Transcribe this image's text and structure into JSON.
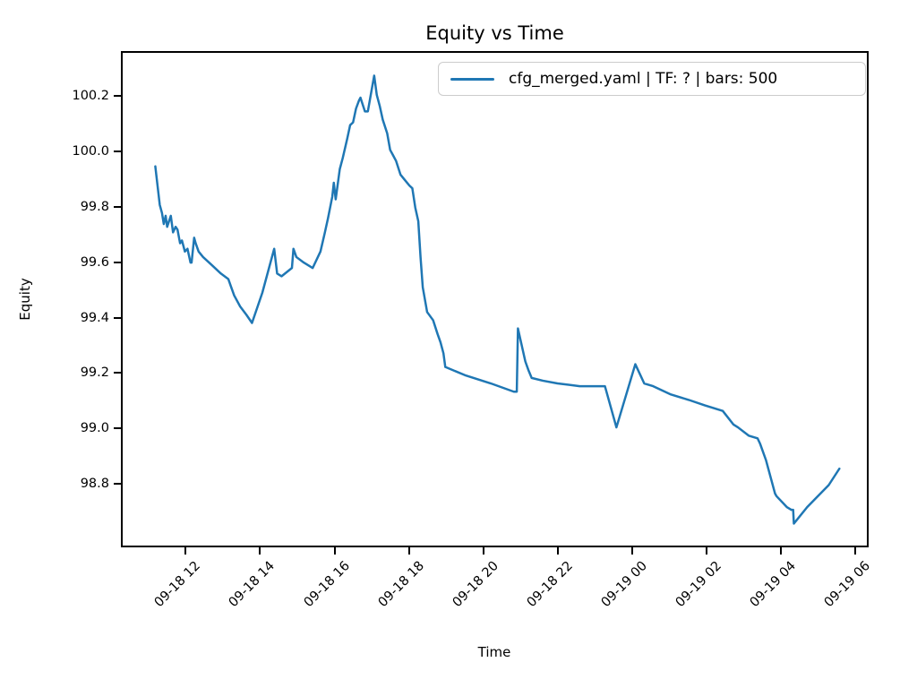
{
  "chart_data": {
    "type": "line",
    "title": "Equity vs Time",
    "xlabel": "Time",
    "ylabel": "Equity",
    "grid": false,
    "legend_position": "upper right",
    "legend": [
      {
        "label": "cfg_merged.yaml | TF: ? | bars: 500",
        "color": "#1f77b4"
      }
    ],
    "line_color": "#1f77b4",
    "axis_color": "#000000",
    "x_unit": "hours after 09-18 00 (tick labels formatted MM-DD HH)",
    "xlim_hours": [
      10.26,
      30.35
    ],
    "ylim": [
      98.57,
      100.363
    ],
    "y_ticks": [
      100.2,
      100.0,
      99.8,
      99.6,
      99.4,
      99.2,
      99.0,
      98.8
    ],
    "x_ticks": [
      {
        "hour": 12,
        "label": "09-18 12"
      },
      {
        "hour": 14,
        "label": "09-18 14"
      },
      {
        "hour": 16,
        "label": "09-18 16"
      },
      {
        "hour": 18,
        "label": "09-18 18"
      },
      {
        "hour": 20,
        "label": "09-18 20"
      },
      {
        "hour": 22,
        "label": "09-18 22"
      },
      {
        "hour": 24,
        "label": "09-19 00"
      },
      {
        "hour": 26,
        "label": "09-19 02"
      },
      {
        "hour": 28,
        "label": "09-19 04"
      },
      {
        "hour": 30,
        "label": "09-19 06"
      }
    ],
    "series": [
      {
        "name": "cfg_merged.yaml | TF: ? | bars: 500",
        "points": [
          [
            11.14,
            99.95
          ],
          [
            11.26,
            99.81
          ],
          [
            11.32,
            99.78
          ],
          [
            11.37,
            99.74
          ],
          [
            11.42,
            99.77
          ],
          [
            11.46,
            99.73
          ],
          [
            11.56,
            99.77
          ],
          [
            11.62,
            99.71
          ],
          [
            11.69,
            99.73
          ],
          [
            11.74,
            99.72
          ],
          [
            11.81,
            99.67
          ],
          [
            11.86,
            99.68
          ],
          [
            11.94,
            99.64
          ],
          [
            12.01,
            99.65
          ],
          [
            12.09,
            99.6
          ],
          [
            12.12,
            99.6
          ],
          [
            12.19,
            99.69
          ],
          [
            12.23,
            99.67
          ],
          [
            12.31,
            99.64
          ],
          [
            12.43,
            99.62
          ],
          [
            12.67,
            99.59
          ],
          [
            12.91,
            99.56
          ],
          [
            13.11,
            99.54
          ],
          [
            13.19,
            99.51
          ],
          [
            13.27,
            99.48
          ],
          [
            13.43,
            99.44
          ],
          [
            13.6,
            99.41
          ],
          [
            13.75,
            99.38
          ],
          [
            14.03,
            99.49
          ],
          [
            14.35,
            99.65
          ],
          [
            14.43,
            99.56
          ],
          [
            14.55,
            99.55
          ],
          [
            14.83,
            99.58
          ],
          [
            14.87,
            99.65
          ],
          [
            14.95,
            99.62
          ],
          [
            15.15,
            99.6
          ],
          [
            15.39,
            99.58
          ],
          [
            15.6,
            99.64
          ],
          [
            15.72,
            99.71
          ],
          [
            15.8,
            99.76
          ],
          [
            15.92,
            99.84
          ],
          [
            15.96,
            99.89
          ],
          [
            16.01,
            99.83
          ],
          [
            16.12,
            99.94
          ],
          [
            16.2,
            99.98
          ],
          [
            16.32,
            100.05
          ],
          [
            16.4,
            100.1
          ],
          [
            16.48,
            100.11
          ],
          [
            16.56,
            100.16
          ],
          [
            16.64,
            100.19
          ],
          [
            16.68,
            100.2
          ],
          [
            16.8,
            100.15
          ],
          [
            16.88,
            100.15
          ],
          [
            16.97,
            100.22
          ],
          [
            17.05,
            100.28
          ],
          [
            17.12,
            100.21
          ],
          [
            17.2,
            100.17
          ],
          [
            17.28,
            100.12
          ],
          [
            17.4,
            100.07
          ],
          [
            17.48,
            100.01
          ],
          [
            17.56,
            99.99
          ],
          [
            17.64,
            99.97
          ],
          [
            17.76,
            99.92
          ],
          [
            17.88,
            99.9
          ],
          [
            18.0,
            99.88
          ],
          [
            18.08,
            99.87
          ],
          [
            18.16,
            99.8
          ],
          [
            18.24,
            99.75
          ],
          [
            18.3,
            99.62
          ],
          [
            18.36,
            99.51
          ],
          [
            18.48,
            99.42
          ],
          [
            18.64,
            99.39
          ],
          [
            18.76,
            99.34
          ],
          [
            18.84,
            99.31
          ],
          [
            18.92,
            99.27
          ],
          [
            18.97,
            99.22
          ],
          [
            19.5,
            99.19
          ],
          [
            20.2,
            99.16
          ],
          [
            20.82,
            99.13
          ],
          [
            20.9,
            99.13
          ],
          [
            20.93,
            99.36
          ],
          [
            21.13,
            99.24
          ],
          [
            21.21,
            99.21
          ],
          [
            21.3,
            99.18
          ],
          [
            21.6,
            99.17
          ],
          [
            22.0,
            99.16
          ],
          [
            22.6,
            99.15
          ],
          [
            23.28,
            99.15
          ],
          [
            23.59,
            99.0
          ],
          [
            24.1,
            99.23
          ],
          [
            24.34,
            99.16
          ],
          [
            24.58,
            99.15
          ],
          [
            25.06,
            99.12
          ],
          [
            25.54,
            99.1
          ],
          [
            25.98,
            99.08
          ],
          [
            26.46,
            99.06
          ],
          [
            26.75,
            99.01
          ],
          [
            26.87,
            99.0
          ],
          [
            27.16,
            98.97
          ],
          [
            27.4,
            98.96
          ],
          [
            27.47,
            98.94
          ],
          [
            27.63,
            98.88
          ],
          [
            27.75,
            98.82
          ],
          [
            27.87,
            98.76
          ],
          [
            27.91,
            98.75
          ],
          [
            28.19,
            98.71
          ],
          [
            28.31,
            98.7
          ],
          [
            28.36,
            98.7
          ],
          [
            28.38,
            98.65
          ],
          [
            28.74,
            98.71
          ],
          [
            29.32,
            98.79
          ],
          [
            29.61,
            98.85
          ]
        ]
      }
    ]
  }
}
